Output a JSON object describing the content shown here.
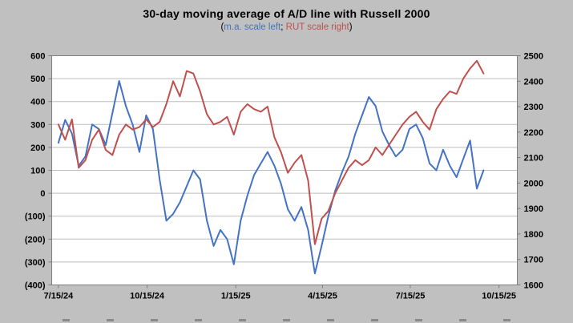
{
  "title": "30-day moving average of A/D line with Russell 2000",
  "subtitle": {
    "open": "(",
    "left_label": "m.a. scale left",
    "separator": "; ",
    "right_label": "RUT scale right",
    "close": ")"
  },
  "colors": {
    "background": "#c0c0c0",
    "plot_background": "#ffffff",
    "gridline": "#bdbdbd",
    "axis_line": "#7f7f7f",
    "axis_text": "#000000",
    "ma_line": "#4472c4",
    "rut_line": "#c0504d"
  },
  "chart_data": {
    "type": "line",
    "title": "30-day moving average of A/D line with Russell 2000",
    "subtitle": "(m.a. scale left; RUT scale right)",
    "grid": "horizontal",
    "legend_position": "none",
    "x": [
      "2024-07-15",
      "2024-07-22",
      "2024-07-29",
      "2024-08-05",
      "2024-08-12",
      "2024-08-19",
      "2024-08-26",
      "2024-09-02",
      "2024-09-09",
      "2024-09-16",
      "2024-09-23",
      "2024-09-30",
      "2024-10-07",
      "2024-10-14",
      "2024-10-21",
      "2024-10-28",
      "2024-11-04",
      "2024-11-11",
      "2024-11-18",
      "2024-11-25",
      "2024-12-02",
      "2024-12-09",
      "2024-12-16",
      "2024-12-23",
      "2024-12-30",
      "2025-01-06",
      "2025-01-13",
      "2025-01-20",
      "2025-01-27",
      "2025-02-03",
      "2025-02-10",
      "2025-02-17",
      "2025-02-24",
      "2025-03-03",
      "2025-03-10",
      "2025-03-17",
      "2025-03-24",
      "2025-03-31",
      "2025-04-07",
      "2025-04-14",
      "2025-04-21",
      "2025-04-28",
      "2025-05-05",
      "2025-05-12",
      "2025-05-19",
      "2025-05-26",
      "2025-06-02",
      "2025-06-09",
      "2025-06-16",
      "2025-06-23",
      "2025-06-30",
      "2025-07-07",
      "2025-07-14",
      "2025-07-21",
      "2025-07-28",
      "2025-08-04",
      "2025-08-11",
      "2025-08-18",
      "2025-08-25",
      "2025-09-01",
      "2025-09-08",
      "2025-09-15",
      "2025-09-22",
      "2025-09-29"
    ],
    "series": [
      {
        "name": "30-day moving average of A/D line",
        "axis": "left",
        "color": "#4472c4",
        "values": [
          220,
          320,
          260,
          120,
          160,
          300,
          280,
          210,
          350,
          490,
          380,
          300,
          180,
          340,
          280,
          60,
          -120,
          -90,
          -40,
          30,
          100,
          60,
          -120,
          -230,
          -160,
          -200,
          -310,
          -120,
          -10,
          80,
          130,
          180,
          120,
          40,
          -70,
          -120,
          -60,
          -160,
          -350,
          -230,
          -100,
          10,
          90,
          160,
          260,
          340,
          420,
          380,
          270,
          210,
          160,
          190,
          280,
          300,
          240,
          130,
          100,
          190,
          120,
          70,
          150,
          230,
          20,
          100
        ]
      },
      {
        "name": "Russell 2000 (RUT)",
        "axis": "right",
        "color": "#c0504d",
        "values": [
          2230,
          2170,
          2250,
          2060,
          2090,
          2170,
          2210,
          2130,
          2110,
          2190,
          2230,
          2210,
          2220,
          2250,
          2220,
          2240,
          2310,
          2400,
          2340,
          2440,
          2430,
          2360,
          2270,
          2230,
          2240,
          2260,
          2190,
          2280,
          2310,
          2290,
          2280,
          2300,
          2180,
          2120,
          2040,
          2080,
          2110,
          2010,
          1760,
          1860,
          1890,
          1960,
          2010,
          2060,
          2090,
          2070,
          2090,
          2140,
          2110,
          2150,
          2190,
          2230,
          2260,
          2280,
          2240,
          2210,
          2290,
          2330,
          2360,
          2350,
          2410,
          2450,
          2480,
          2430
        ]
      }
    ],
    "left_axis": {
      "min": -400,
      "max": 600,
      "tick_step": 100,
      "tick_labels": [
        "600",
        "500",
        "400",
        "300",
        "200",
        "100",
        "0",
        "(100)",
        "(200)",
        "(300)",
        "(400)"
      ]
    },
    "right_axis": {
      "min": 1600,
      "max": 2500,
      "tick_step": 100,
      "tick_labels": [
        "2500",
        "2400",
        "2300",
        "2200",
        "2100",
        "2000",
        "1900",
        "1800",
        "1700",
        "1600"
      ]
    },
    "x_axis": {
      "min_date": "2024-07-08",
      "max_date": "2025-11-03",
      "tick_dates": [
        "2024-07-15",
        "2024-10-15",
        "2025-01-15",
        "2025-04-15",
        "2025-07-15",
        "2025-10-15"
      ],
      "tick_labels": [
        "7/15/24",
        "10/15/24",
        "1/15/25",
        "4/15/25",
        "7/15/25",
        "10/15/25"
      ]
    }
  }
}
